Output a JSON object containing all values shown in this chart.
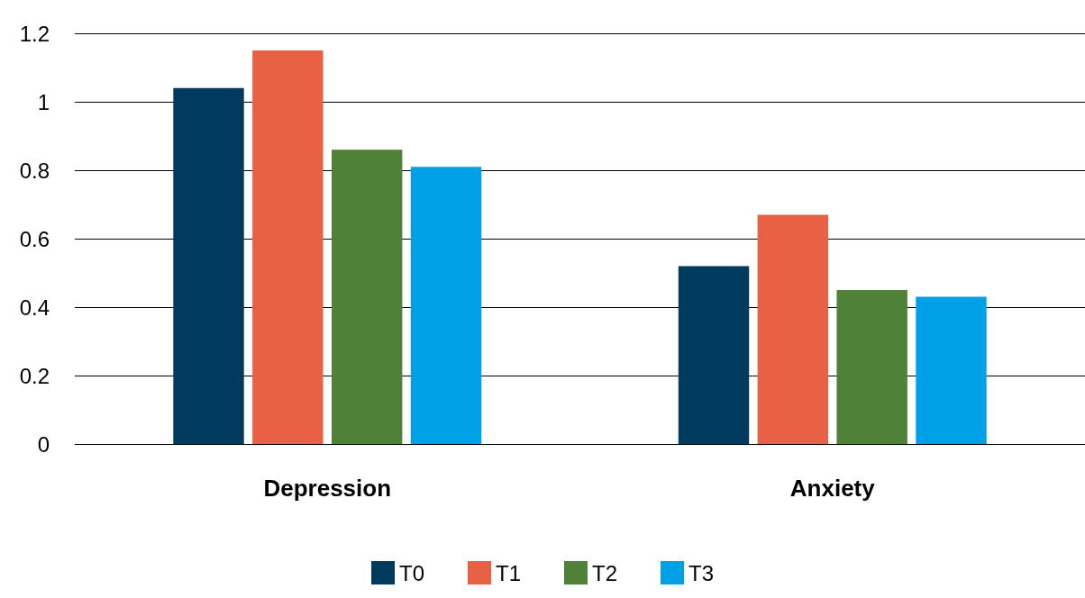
{
  "chart_data": {
    "type": "bar",
    "categories": [
      "Depression",
      "Anxiety"
    ],
    "series": [
      {
        "name": "T0",
        "color": "#003a5d",
        "values": [
          1.04,
          0.52
        ]
      },
      {
        "name": "T1",
        "color": "#e96144",
        "values": [
          1.15,
          0.67
        ]
      },
      {
        "name": "T2",
        "color": "#4f8238",
        "values": [
          0.86,
          0.45
        ]
      },
      {
        "name": "T3",
        "color": "#00a0e6",
        "values": [
          0.81,
          0.43
        ]
      }
    ],
    "ylim": [
      0,
      1.2
    ],
    "yticks": [
      0,
      0.2,
      0.4,
      0.6,
      0.8,
      1,
      1.2
    ],
    "grid": "y",
    "legend": "bottom"
  }
}
